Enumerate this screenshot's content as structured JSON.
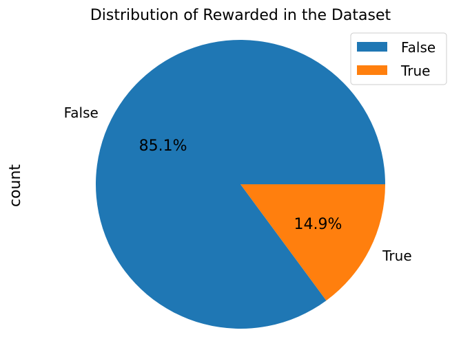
{
  "chart_data": {
    "type": "pie",
    "title": "Distribution of Rewarded in the Dataset",
    "ylabel": "count",
    "categories": [
      "False",
      "True"
    ],
    "values": [
      85.1,
      14.9
    ],
    "pct_labels": [
      "85.1%",
      "14.9%"
    ],
    "colors": [
      "#1f77b4",
      "#ff7f0e"
    ],
    "legend": {
      "placement": "top-right",
      "entries": [
        "False",
        "True"
      ]
    }
  }
}
